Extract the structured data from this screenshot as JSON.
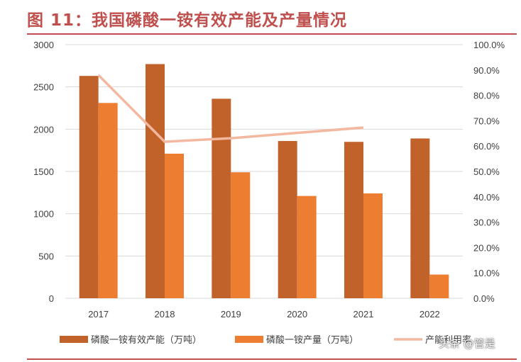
{
  "title": "图 11：我国磷酸一铵有效产能及产量情况",
  "watermark": "头条 @管是",
  "colors": {
    "title": "#c0504d",
    "capacity": "#c0622a",
    "output": "#ed7d31",
    "utilization": "#f4b8a0",
    "grid": "#d9d9d9"
  },
  "chart_data": {
    "type": "bar",
    "categories": [
      "2017",
      "2018",
      "2019",
      "2020",
      "2021",
      "2022"
    ],
    "series": [
      {
        "name": "磷酸一铵有效产能（万吨）",
        "type": "bar",
        "axis": "left",
        "values": [
          2630,
          2770,
          2360,
          1860,
          1850,
          1890
        ]
      },
      {
        "name": "磷酸一铵产量（万吨）",
        "type": "bar",
        "axis": "left",
        "values": [
          2310,
          1710,
          1490,
          1210,
          1240,
          280
        ]
      },
      {
        "name": "产能利用率",
        "type": "line",
        "axis": "right",
        "values": [
          0.88,
          0.617,
          0.631,
          null,
          0.673,
          null
        ]
      }
    ],
    "y_left": {
      "min": 0,
      "max": 3000,
      "ticks": [
        "0",
        "500",
        "1000",
        "1500",
        "2000",
        "2500",
        "3000"
      ]
    },
    "y_right": {
      "min": 0,
      "max": 1,
      "ticks": [
        "0.0%",
        "10.0%",
        "20.0%",
        "30.0%",
        "40.0%",
        "50.0%",
        "60.0%",
        "70.0%",
        "80.0%",
        "90.0%",
        "100.0%"
      ]
    },
    "grid": true,
    "legend_position": "bottom"
  }
}
